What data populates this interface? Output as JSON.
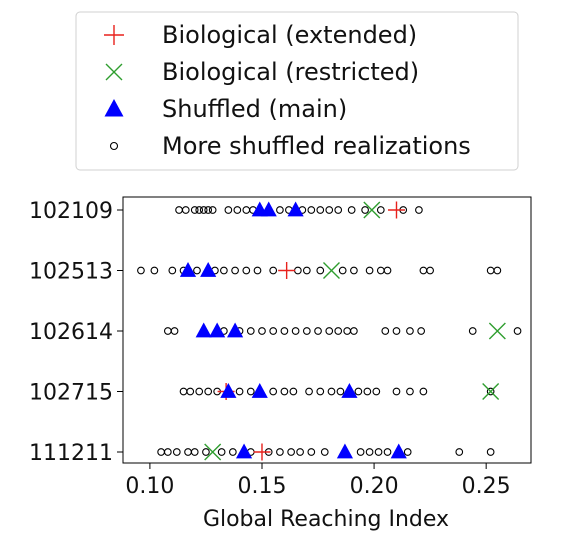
{
  "chart_data": {
    "type": "scatter",
    "xlabel": "Global Reaching Index",
    "ylabel": "",
    "xlim": [
      0.088,
      0.27
    ],
    "x_ticks": [
      "0.10",
      "0.15",
      "0.20",
      "0.25"
    ],
    "x_tick_values": [
      0.1,
      0.15,
      0.2,
      0.25
    ],
    "categories": [
      "102109",
      "102513",
      "102614",
      "102715",
      "111211"
    ],
    "grid": false,
    "legend_position": "top",
    "legend": [
      {
        "label": "Biological (extended)",
        "marker": "plus",
        "color": "#e8211c"
      },
      {
        "label": "Biological (restricted)",
        "marker": "x",
        "color": "#2f9e2f"
      },
      {
        "label": "Shuffled (main)",
        "marker": "triangle",
        "color": "#0000ff"
      },
      {
        "label": "More shuffled realizations",
        "marker": "circle",
        "color": "#000000"
      }
    ],
    "series": [
      {
        "name": "Biological (extended)",
        "marker": "plus",
        "color": "#e8211c",
        "points": [
          [
            0.21,
            "102109"
          ],
          [
            0.161,
            "102513"
          ],
          [
            0.134,
            "102715"
          ],
          [
            0.15,
            "111211"
          ]
        ]
      },
      {
        "name": "Biological (restricted)",
        "marker": "x",
        "color": "#2f9e2f",
        "points": [
          [
            0.199,
            "102109"
          ],
          [
            0.181,
            "102513"
          ],
          [
            0.255,
            "102614"
          ],
          [
            0.252,
            "102715"
          ],
          [
            0.128,
            "111211"
          ]
        ]
      },
      {
        "name": "Shuffled (main)",
        "marker": "triangle",
        "color": "#0000ff",
        "points": [
          [
            0.149,
            "102109"
          ],
          [
            0.153,
            "102109"
          ],
          [
            0.165,
            "102109"
          ],
          [
            0.117,
            "102513"
          ],
          [
            0.126,
            "102513"
          ],
          [
            0.124,
            "102614"
          ],
          [
            0.13,
            "102614"
          ],
          [
            0.138,
            "102614"
          ],
          [
            0.135,
            "102715"
          ],
          [
            0.149,
            "102715"
          ],
          [
            0.189,
            "102715"
          ],
          [
            0.142,
            "111211"
          ],
          [
            0.187,
            "111211"
          ],
          [
            0.211,
            "111211"
          ]
        ]
      },
      {
        "name": "More shuffled realizations",
        "marker": "circle",
        "color": "#000000",
        "points": [
          [
            0.113,
            "102109"
          ],
          [
            0.116,
            "102109"
          ],
          [
            0.12,
            "102109"
          ],
          [
            0.122,
            "102109"
          ],
          [
            0.124,
            "102109"
          ],
          [
            0.126,
            "102109"
          ],
          [
            0.128,
            "102109"
          ],
          [
            0.135,
            "102109"
          ],
          [
            0.139,
            "102109"
          ],
          [
            0.143,
            "102109"
          ],
          [
            0.146,
            "102109"
          ],
          [
            0.158,
            "102109"
          ],
          [
            0.162,
            "102109"
          ],
          [
            0.168,
            "102109"
          ],
          [
            0.172,
            "102109"
          ],
          [
            0.176,
            "102109"
          ],
          [
            0.18,
            "102109"
          ],
          [
            0.184,
            "102109"
          ],
          [
            0.19,
            "102109"
          ],
          [
            0.196,
            "102109"
          ],
          [
            0.203,
            "102109"
          ],
          [
            0.213,
            "102109"
          ],
          [
            0.22,
            "102109"
          ],
          [
            0.096,
            "102513"
          ],
          [
            0.102,
            "102513"
          ],
          [
            0.11,
            "102513"
          ],
          [
            0.115,
            "102513"
          ],
          [
            0.121,
            "102513"
          ],
          [
            0.129,
            "102513"
          ],
          [
            0.133,
            "102513"
          ],
          [
            0.138,
            "102513"
          ],
          [
            0.143,
            "102513"
          ],
          [
            0.148,
            "102513"
          ],
          [
            0.155,
            "102513"
          ],
          [
            0.166,
            "102513"
          ],
          [
            0.17,
            "102513"
          ],
          [
            0.176,
            "102513"
          ],
          [
            0.186,
            "102513"
          ],
          [
            0.191,
            "102513"
          ],
          [
            0.198,
            "102513"
          ],
          [
            0.203,
            "102513"
          ],
          [
            0.206,
            "102513"
          ],
          [
            0.222,
            "102513"
          ],
          [
            0.225,
            "102513"
          ],
          [
            0.252,
            "102513"
          ],
          [
            0.255,
            "102513"
          ],
          [
            0.108,
            "102614"
          ],
          [
            0.111,
            "102614"
          ],
          [
            0.133,
            "102614"
          ],
          [
            0.14,
            "102614"
          ],
          [
            0.145,
            "102614"
          ],
          [
            0.15,
            "102614"
          ],
          [
            0.155,
            "102614"
          ],
          [
            0.16,
            "102614"
          ],
          [
            0.165,
            "102614"
          ],
          [
            0.17,
            "102614"
          ],
          [
            0.175,
            "102614"
          ],
          [
            0.18,
            "102614"
          ],
          [
            0.184,
            "102614"
          ],
          [
            0.188,
            "102614"
          ],
          [
            0.191,
            "102614"
          ],
          [
            0.205,
            "102614"
          ],
          [
            0.21,
            "102614"
          ],
          [
            0.216,
            "102614"
          ],
          [
            0.221,
            "102614"
          ],
          [
            0.244,
            "102614"
          ],
          [
            0.264,
            "102614"
          ],
          [
            0.115,
            "102715"
          ],
          [
            0.118,
            "102715"
          ],
          [
            0.122,
            "102715"
          ],
          [
            0.126,
            "102715"
          ],
          [
            0.13,
            "102715"
          ],
          [
            0.14,
            "102715"
          ],
          [
            0.145,
            "102715"
          ],
          [
            0.155,
            "102715"
          ],
          [
            0.16,
            "102715"
          ],
          [
            0.164,
            "102715"
          ],
          [
            0.171,
            "102715"
          ],
          [
            0.176,
            "102715"
          ],
          [
            0.181,
            "102715"
          ],
          [
            0.185,
            "102715"
          ],
          [
            0.193,
            "102715"
          ],
          [
            0.197,
            "102715"
          ],
          [
            0.201,
            "102715"
          ],
          [
            0.21,
            "102715"
          ],
          [
            0.216,
            "102715"
          ],
          [
            0.222,
            "102715"
          ],
          [
            0.252,
            "102715"
          ],
          [
            0.105,
            "111211"
          ],
          [
            0.108,
            "111211"
          ],
          [
            0.112,
            "111211"
          ],
          [
            0.117,
            "111211"
          ],
          [
            0.12,
            "111211"
          ],
          [
            0.125,
            "111211"
          ],
          [
            0.132,
            "111211"
          ],
          [
            0.137,
            "111211"
          ],
          [
            0.145,
            "111211"
          ],
          [
            0.153,
            "111211"
          ],
          [
            0.158,
            "111211"
          ],
          [
            0.163,
            "111211"
          ],
          [
            0.167,
            "111211"
          ],
          [
            0.172,
            "111211"
          ],
          [
            0.178,
            "111211"
          ],
          [
            0.194,
            "111211"
          ],
          [
            0.198,
            "111211"
          ],
          [
            0.202,
            "111211"
          ],
          [
            0.206,
            "111211"
          ],
          [
            0.215,
            "111211"
          ],
          [
            0.238,
            "111211"
          ],
          [
            0.252,
            "111211"
          ]
        ]
      }
    ]
  }
}
